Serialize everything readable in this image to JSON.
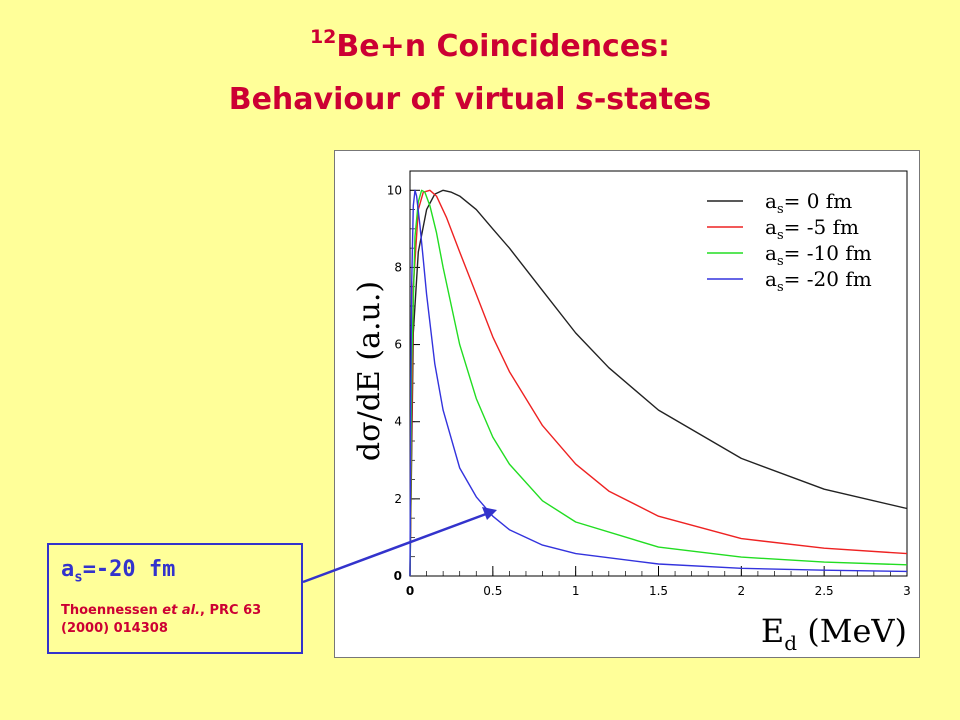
{
  "title": {
    "line1_sup": "12",
    "line1_main": "Be+n Coincidences:",
    "line2_pre": "Behaviour of virtual ",
    "line2_italic": "s",
    "line2_post": "-states"
  },
  "callout": {
    "a": "a",
    "s": "s",
    "value": "=-20 fm",
    "ref_author": "Thoennessen ",
    "ref_etal": "et al.",
    "ref_rest1": ", PRC 63",
    "ref_rest2": "(2000) 014308"
  },
  "colors": {
    "title": "#cc0033",
    "callout": "#3333cc",
    "background": "#ffff99"
  },
  "chart_data": {
    "type": "line",
    "xlabel_main": "E",
    "xlabel_sub": "d",
    "xlabel_unit": " (MeV)",
    "ylabel": "dσ/dE (a.u.)",
    "xlim": [
      0,
      3
    ],
    "ylim": [
      0,
      10.5
    ],
    "xticks": [
      "0",
      "0.5",
      "1",
      "1.5",
      "2",
      "2.5",
      "3"
    ],
    "yticks": [
      "0",
      "2",
      "4",
      "6",
      "8",
      "10"
    ],
    "grid": false,
    "legend_position": "top-right",
    "legend_prefix": "a",
    "legend_sub": "s",
    "series": [
      {
        "name": "= 0 fm",
        "color": "#222222",
        "x": [
          0,
          0.02,
          0.05,
          0.1,
          0.15,
          0.2,
          0.25,
          0.3,
          0.4,
          0.5,
          0.6,
          0.8,
          1.0,
          1.2,
          1.5,
          2.0,
          2.5,
          3.0
        ],
        "y": [
          0,
          6.3,
          8.4,
          9.5,
          9.9,
          10.0,
          9.95,
          9.85,
          9.5,
          9.0,
          8.5,
          7.4,
          6.3,
          5.4,
          4.3,
          3.05,
          2.25,
          1.75
        ]
      },
      {
        "name": "= -5 fm",
        "color": "#ee2222",
        "x": [
          0,
          0.02,
          0.05,
          0.08,
          0.12,
          0.16,
          0.22,
          0.3,
          0.4,
          0.5,
          0.6,
          0.8,
          1.0,
          1.2,
          1.5,
          2.0,
          2.5,
          3.0
        ],
        "y": [
          0,
          7.5,
          9.5,
          9.95,
          10.0,
          9.85,
          9.3,
          8.4,
          7.3,
          6.2,
          5.3,
          3.9,
          2.9,
          2.2,
          1.55,
          0.97,
          0.72,
          0.58
        ]
      },
      {
        "name": "= -10 fm",
        "color": "#22dd22",
        "x": [
          0,
          0.01,
          0.03,
          0.05,
          0.07,
          0.09,
          0.12,
          0.16,
          0.2,
          0.3,
          0.4,
          0.5,
          0.6,
          0.8,
          1.0,
          1.5,
          2.0,
          2.5,
          3.0
        ],
        "y": [
          0,
          5.5,
          8.8,
          9.7,
          10.0,
          9.95,
          9.6,
          8.9,
          8.0,
          6.0,
          4.6,
          3.6,
          2.9,
          1.95,
          1.4,
          0.75,
          0.49,
          0.36,
          0.29
        ]
      },
      {
        "name": "= -20 fm",
        "color": "#3333dd",
        "x": [
          0,
          0.005,
          0.01,
          0.02,
          0.03,
          0.04,
          0.06,
          0.08,
          0.1,
          0.15,
          0.2,
          0.3,
          0.4,
          0.5,
          0.6,
          0.8,
          1.0,
          1.5,
          2.0,
          2.5,
          3.0
        ],
        "y": [
          0,
          5.0,
          7.6,
          9.6,
          10.0,
          9.85,
          9.1,
          8.2,
          7.3,
          5.5,
          4.3,
          2.8,
          2.05,
          1.55,
          1.2,
          0.8,
          0.58,
          0.31,
          0.2,
          0.15,
          0.12
        ]
      }
    ]
  }
}
